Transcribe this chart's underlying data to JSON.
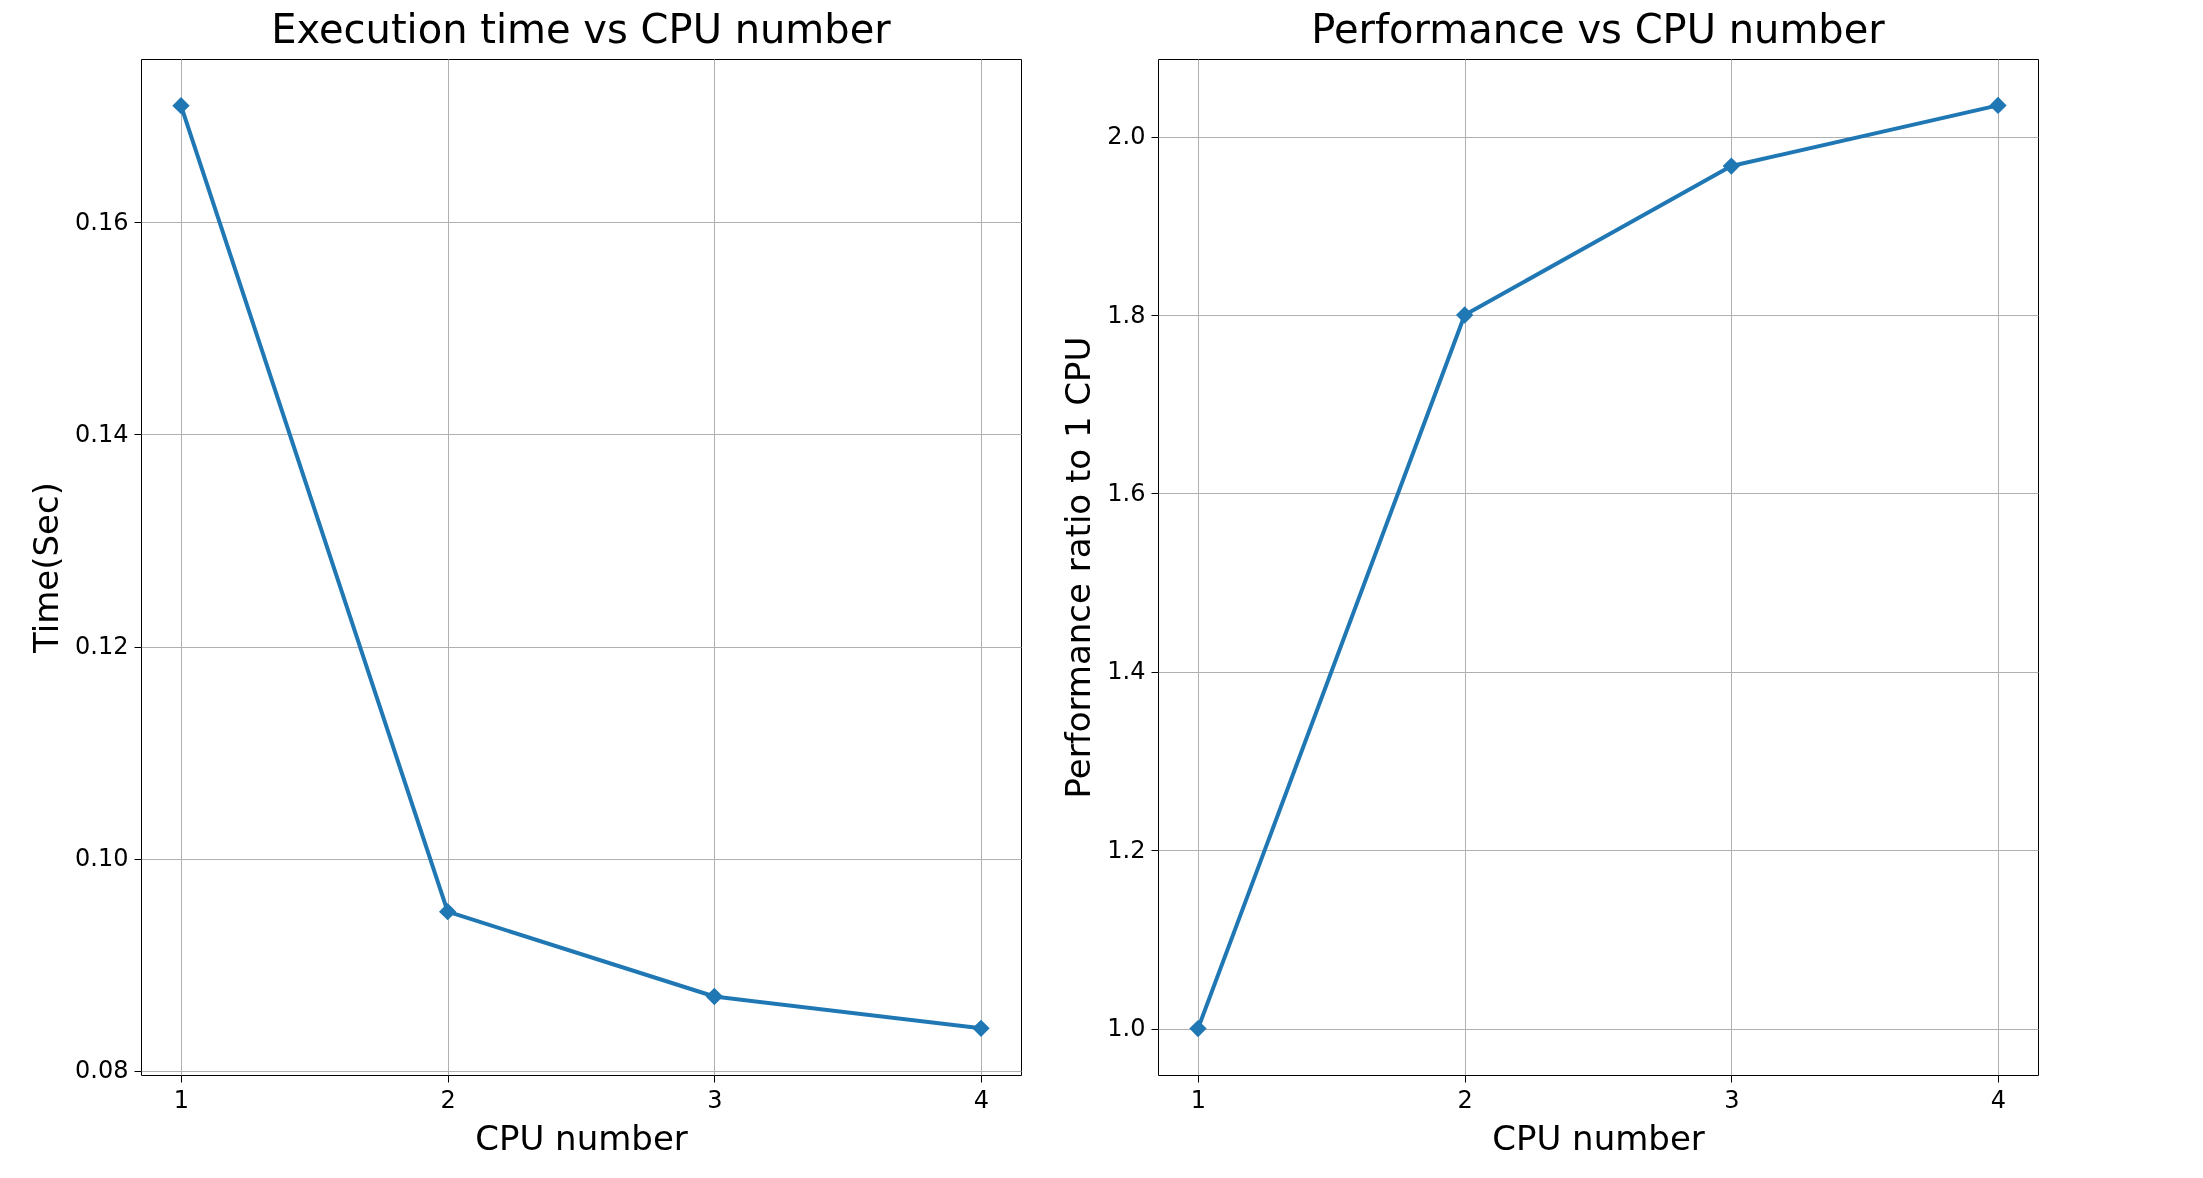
{
  "chart_data": [
    {
      "type": "line",
      "title": "Execution time vs CPU number",
      "xlabel": "CPU number",
      "ylabel": "Time(Sec)",
      "x": [
        1,
        2,
        3,
        4
      ],
      "values": [
        0.171,
        0.095,
        0.087,
        0.084
      ],
      "color": "#1f77b4",
      "xlim": [
        0.85,
        4.15
      ],
      "xticks": [
        1,
        2,
        3,
        4
      ],
      "ylim": [
        0.0796,
        0.1754
      ],
      "yticks": [
        {
          "value": 0.08,
          "label": "0.08"
        },
        {
          "value": 0.1,
          "label": "0.10"
        },
        {
          "value": 0.12,
          "label": "0.12"
        },
        {
          "value": 0.14,
          "label": "0.14"
        },
        {
          "value": 0.16,
          "label": "0.16"
        }
      ],
      "grid": true,
      "marker": "diamond"
    },
    {
      "type": "line",
      "title": "Performance vs CPU number",
      "xlabel": "CPU number",
      "ylabel": "Performance ratio to 1 CPU",
      "x": [
        1,
        2,
        3,
        4
      ],
      "values": [
        1.0,
        1.8,
        1.967,
        2.035
      ],
      "color": "#1f77b4",
      "xlim": [
        0.85,
        4.15
      ],
      "xticks": [
        1,
        2,
        3,
        4
      ],
      "ylim": [
        0.948,
        2.087
      ],
      "yticks": [
        {
          "value": 1,
          "label": "1.0"
        },
        {
          "value": 1.2,
          "label": "1.2"
        },
        {
          "value": 1.4,
          "label": "1.4"
        },
        {
          "value": 1.6,
          "label": "1.6"
        },
        {
          "value": 1.8,
          "label": "1.8"
        },
        {
          "value": 2,
          "label": "2.0"
        }
      ],
      "grid": true,
      "marker": "diamond"
    }
  ]
}
